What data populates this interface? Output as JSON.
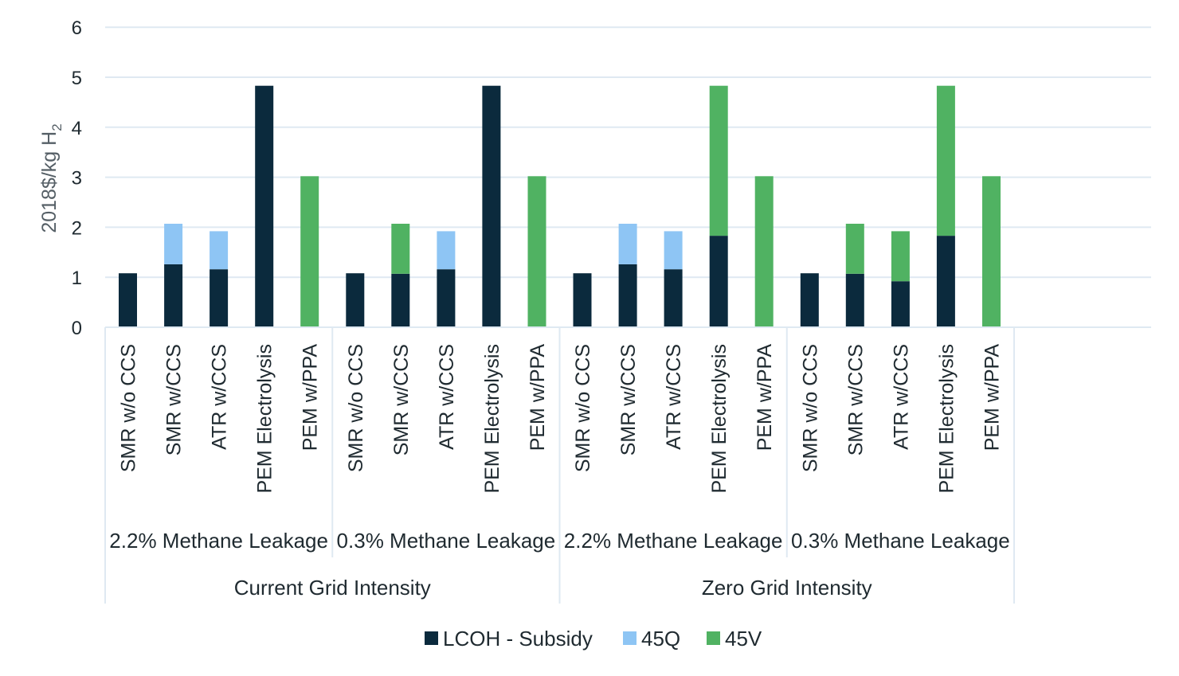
{
  "chart_data": {
    "type": "bar",
    "stacked": true,
    "ylabel_main": "2018$/kg H",
    "ylabel_sub": "2",
    "ylim": [
      0,
      6
    ],
    "yticks": [
      0,
      1,
      2,
      3,
      4,
      5,
      6
    ],
    "grid": true,
    "legend_position": "bottom",
    "categories": [
      "SMR w/o CCS",
      "SMR w/CCS",
      "ATR w/CCS",
      "PEM Electrolysis",
      "PEM w/PPA",
      "SMR w/o CCS",
      "SMR w/CCS",
      "ATR w/CCS",
      "PEM Electrolysis",
      "PEM w/PPA",
      "SMR w/o CCS",
      "SMR w/CCS",
      "ATR w/CCS",
      "PEM Electrolysis",
      "PEM w/PPA",
      "SMR w/o CCS",
      "SMR w/CCS",
      "ATR w/CCS",
      "PEM Electrolysis",
      "PEM w/PPA"
    ],
    "groups_level1": [
      "2.2% Methane Leakage",
      "0.3% Methane Leakage",
      "2.2% Methane Leakage",
      "0.3% Methane Leakage"
    ],
    "groups_level2": [
      "Current Grid Intensity",
      "Zero Grid Intensity"
    ],
    "series": [
      {
        "name": "LCOH - Subsidy",
        "color": "#0b2a3d",
        "values": [
          1.08,
          1.26,
          1.16,
          4.83,
          0,
          1.08,
          1.07,
          1.16,
          4.83,
          0,
          1.08,
          1.26,
          1.16,
          1.83,
          0,
          1.08,
          1.07,
          0.92,
          1.83,
          0
        ]
      },
      {
        "name": "45Q",
        "color": "#8ec5f4",
        "values": [
          0,
          0.81,
          0.76,
          0,
          0,
          0,
          0,
          0.76,
          0,
          0,
          0,
          0.81,
          0.76,
          0,
          0,
          0,
          0,
          0,
          0,
          0
        ]
      },
      {
        "name": "45V",
        "color": "#50b262",
        "values": [
          0,
          0,
          0,
          0,
          3.02,
          0,
          1.0,
          0,
          0,
          3.02,
          0,
          0,
          0,
          3.0,
          3.02,
          0,
          1.0,
          1.0,
          3.0,
          3.02
        ]
      }
    ]
  }
}
